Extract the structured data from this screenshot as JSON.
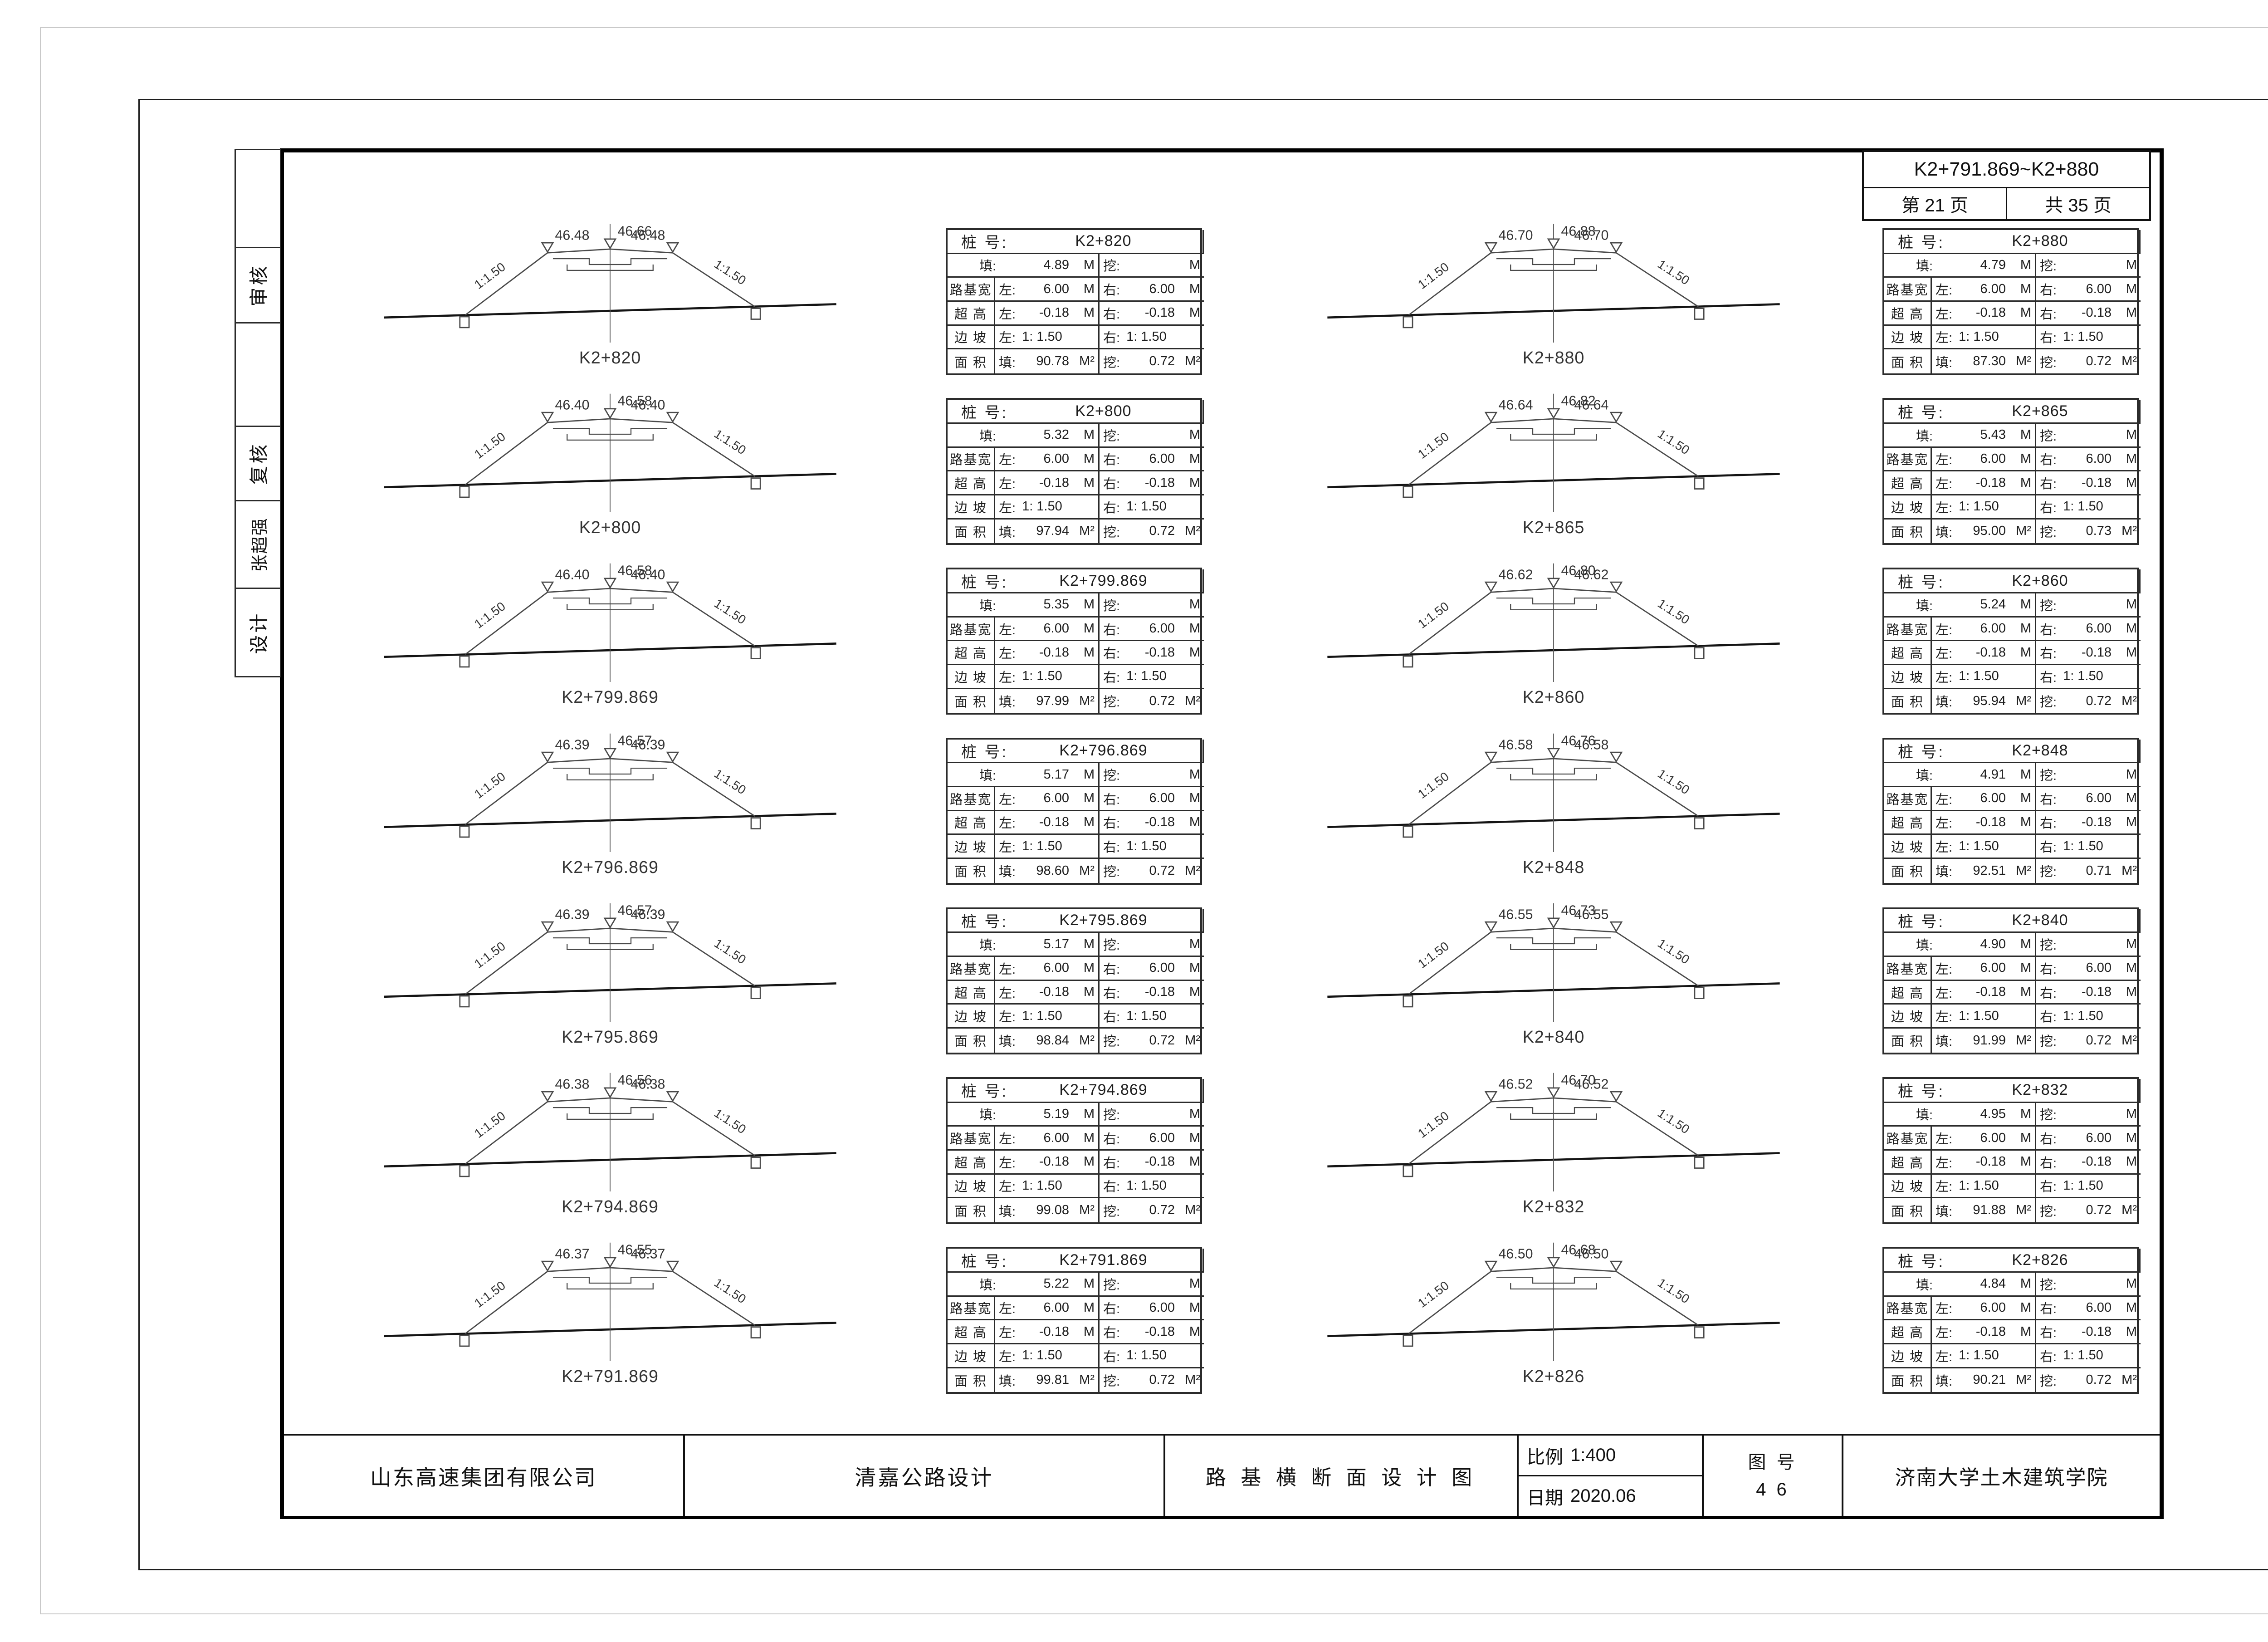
{
  "header": {
    "range": "K2+791.869~K2+880",
    "page_text": "第  21  页",
    "total_text": "共  35  页"
  },
  "sidebar": {
    "items": [
      {
        "label": ""
      },
      {
        "label": "审核"
      },
      {
        "label": ""
      },
      {
        "label": "复核"
      },
      {
        "label": "张超强"
      },
      {
        "label": "设计"
      }
    ]
  },
  "labels": {
    "station": "桩 号:",
    "fill": "填:",
    "cut": "挖:",
    "subgrade_width": "路基宽",
    "superelevation": "超 高",
    "side_slope": "边 坡",
    "area": "面 积",
    "left": "左:",
    "right": "右:",
    "unit_m": "M",
    "unit_m2": "M²"
  },
  "left_column": [
    {
      "station": "K2+820",
      "elev_left": "46.48",
      "elev_center": "46.66",
      "elev_right": "46.48",
      "slope_left_label": "1:1.50",
      "slope_right_label": "1:1.50",
      "table": {
        "fill": "4.89",
        "cut": "",
        "width_left": "6.00",
        "width_right": "6.00",
        "super_left": "-0.18",
        "super_right": "-0.18",
        "slope_left": "1: 1.50",
        "slope_right": "1: 1.50",
        "area_fill": "90.78",
        "area_cut": "0.72"
      }
    },
    {
      "station": "K2+800",
      "elev_left": "46.40",
      "elev_center": "46.58",
      "elev_right": "46.40",
      "slope_left_label": "1:1.50",
      "slope_right_label": "1:1.50",
      "table": {
        "fill": "5.32",
        "cut": "",
        "width_left": "6.00",
        "width_right": "6.00",
        "super_left": "-0.18",
        "super_right": "-0.18",
        "slope_left": "1: 1.50",
        "slope_right": "1: 1.50",
        "area_fill": "97.94",
        "area_cut": "0.72"
      }
    },
    {
      "station": "K2+799.869",
      "elev_left": "46.40",
      "elev_center": "46.58",
      "elev_right": "46.40",
      "slope_left_label": "1:1.50",
      "slope_right_label": "1:1.50",
      "table": {
        "fill": "5.35",
        "cut": "",
        "width_left": "6.00",
        "width_right": "6.00",
        "super_left": "-0.18",
        "super_right": "-0.18",
        "slope_left": "1: 1.50",
        "slope_right": "1: 1.50",
        "area_fill": "97.99",
        "area_cut": "0.72"
      }
    },
    {
      "station": "K2+796.869",
      "elev_left": "46.39",
      "elev_center": "46.57",
      "elev_right": "46.39",
      "slope_left_label": "1:1.50",
      "slope_right_label": "1:1.50",
      "table": {
        "fill": "5.17",
        "cut": "",
        "width_left": "6.00",
        "width_right": "6.00",
        "super_left": "-0.18",
        "super_right": "-0.18",
        "slope_left": "1: 1.50",
        "slope_right": "1: 1.50",
        "area_fill": "98.60",
        "area_cut": "0.72"
      }
    },
    {
      "station": "K2+795.869",
      "elev_left": "46.39",
      "elev_center": "46.57",
      "elev_right": "46.39",
      "slope_left_label": "1:1.50",
      "slope_right_label": "1:1.50",
      "table": {
        "fill": "5.17",
        "cut": "",
        "width_left": "6.00",
        "width_right": "6.00",
        "super_left": "-0.18",
        "super_right": "-0.18",
        "slope_left": "1: 1.50",
        "slope_right": "1: 1.50",
        "area_fill": "98.84",
        "area_cut": "0.72"
      }
    },
    {
      "station": "K2+794.869",
      "elev_left": "46.38",
      "elev_center": "46.56",
      "elev_right": "46.38",
      "slope_left_label": "1:1.50",
      "slope_right_label": "1:1.50",
      "table": {
        "fill": "5.19",
        "cut": "",
        "width_left": "6.00",
        "width_right": "6.00",
        "super_left": "-0.18",
        "super_right": "-0.18",
        "slope_left": "1: 1.50",
        "slope_right": "1: 1.50",
        "area_fill": "99.08",
        "area_cut": "0.72"
      }
    },
    {
      "station": "K2+791.869",
      "elev_left": "46.37",
      "elev_center": "46.55",
      "elev_right": "46.37",
      "slope_left_label": "1:1.50",
      "slope_right_label": "1:1.50",
      "table": {
        "fill": "5.22",
        "cut": "",
        "width_left": "6.00",
        "width_right": "6.00",
        "super_left": "-0.18",
        "super_right": "-0.18",
        "slope_left": "1: 1.50",
        "slope_right": "1: 1.50",
        "area_fill": "99.81",
        "area_cut": "0.72"
      }
    }
  ],
  "right_column": [
    {
      "station": "K2+880",
      "elev_left": "46.70",
      "elev_center": "46.88",
      "elev_right": "46.70",
      "slope_left_label": "1:1.50",
      "slope_right_label": "1:1.50",
      "table": {
        "fill": "4.79",
        "cut": "",
        "width_left": "6.00",
        "width_right": "6.00",
        "super_left": "-0.18",
        "super_right": "-0.18",
        "slope_left": "1: 1.50",
        "slope_right": "1: 1.50",
        "area_fill": "87.30",
        "area_cut": "0.72"
      }
    },
    {
      "station": "K2+865",
      "elev_left": "46.64",
      "elev_center": "46.82",
      "elev_right": "46.64",
      "slope_left_label": "1:1.50",
      "slope_right_label": "1:1.50",
      "table": {
        "fill": "5.43",
        "cut": "",
        "width_left": "6.00",
        "width_right": "6.00",
        "super_left": "-0.18",
        "super_right": "-0.18",
        "slope_left": "1: 1.50",
        "slope_right": "1: 1.50",
        "area_fill": "95.00",
        "area_cut": "0.73"
      }
    },
    {
      "station": "K2+860",
      "elev_left": "46.62",
      "elev_center": "46.80",
      "elev_right": "46.62",
      "slope_left_label": "1:1.50",
      "slope_right_label": "1:1.50",
      "table": {
        "fill": "5.24",
        "cut": "",
        "width_left": "6.00",
        "width_right": "6.00",
        "super_left": "-0.18",
        "super_right": "-0.18",
        "slope_left": "1: 1.50",
        "slope_right": "1: 1.50",
        "area_fill": "95.94",
        "area_cut": "0.72"
      }
    },
    {
      "station": "K2+848",
      "elev_left": "46.58",
      "elev_center": "46.76",
      "elev_right": "46.58",
      "slope_left_label": "1:1.50",
      "slope_right_label": "1:1.50",
      "table": {
        "fill": "4.91",
        "cut": "",
        "width_left": "6.00",
        "width_right": "6.00",
        "super_left": "-0.18",
        "super_right": "-0.18",
        "slope_left": "1: 1.50",
        "slope_right": "1: 1.50",
        "area_fill": "92.51",
        "area_cut": "0.71"
      }
    },
    {
      "station": "K2+840",
      "elev_left": "46.55",
      "elev_center": "46.73",
      "elev_right": "46.55",
      "slope_left_label": "1:1.50",
      "slope_right_label": "1:1.50",
      "table": {
        "fill": "4.90",
        "cut": "",
        "width_left": "6.00",
        "width_right": "6.00",
        "super_left": "-0.18",
        "super_right": "-0.18",
        "slope_left": "1: 1.50",
        "slope_right": "1: 1.50",
        "area_fill": "91.99",
        "area_cut": "0.72"
      }
    },
    {
      "station": "K2+832",
      "elev_left": "46.52",
      "elev_center": "46.70",
      "elev_right": "46.52",
      "slope_left_label": "1:1.50",
      "slope_right_label": "1:1.50",
      "table": {
        "fill": "4.95",
        "cut": "",
        "width_left": "6.00",
        "width_right": "6.00",
        "super_left": "-0.18",
        "super_right": "-0.18",
        "slope_left": "1: 1.50",
        "slope_right": "1: 1.50",
        "area_fill": "91.88",
        "area_cut": "0.72"
      }
    },
    {
      "station": "K2+826",
      "elev_left": "46.50",
      "elev_center": "46.68",
      "elev_right": "46.50",
      "slope_left_label": "1:1.50",
      "slope_right_label": "1:1.50",
      "table": {
        "fill": "4.84",
        "cut": "",
        "width_left": "6.00",
        "width_right": "6.00",
        "super_left": "-0.18",
        "super_right": "-0.18",
        "slope_left": "1: 1.50",
        "slope_right": "1: 1.50",
        "area_fill": "90.21",
        "area_cut": "0.72"
      }
    }
  ],
  "title_block": {
    "company": "山东高速集团有限公司",
    "project": "清嘉公路设计",
    "drawing_title": "路 基 横 断 面 设 计 图",
    "scale_label": "比例",
    "scale_value": "1:400",
    "date_label": "日期",
    "date_value": "2020.06",
    "sheet_label": "图 号",
    "sheet_value": "4 6",
    "institute": "济南大学土木建筑学院"
  }
}
